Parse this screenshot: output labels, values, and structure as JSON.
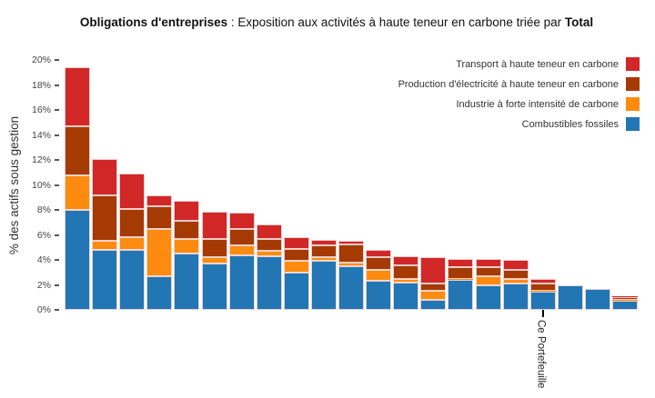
{
  "title": {
    "prefix_bold": "Obligations d'entreprises",
    "middle": " : Exposition aux activités à haute teneur en carbone triée par ",
    "suffix_bold": "Total"
  },
  "chart_data": {
    "type": "bar",
    "stacked": true,
    "title": "Obligations d'entreprises : Exposition aux activités à haute teneur en carbone triée par Total",
    "ylabel": "% des actifs sous gestion",
    "ylim": [
      0,
      20
    ],
    "ytick_step": 2,
    "ytick_labels": [
      "0%",
      "2%",
      "4%",
      "6%",
      "8%",
      "10%",
      "12%",
      "14%",
      "16%",
      "18%",
      "20%"
    ],
    "grid": false,
    "legend_position": "top-right",
    "bar_count": 21,
    "xtick_label": "Ce Portefeuille",
    "xtick_bar_index": 17,
    "series": [
      {
        "name": "Combustibles fossiles",
        "color": "#2276b4",
        "values": [
          8.0,
          4.8,
          4.8,
          2.7,
          4.5,
          3.7,
          4.4,
          4.3,
          3.0,
          3.9,
          3.5,
          2.35,
          2.15,
          0.8,
          2.4,
          2.0,
          2.1,
          1.45,
          2.0,
          1.65,
          0.75
        ]
      },
      {
        "name": "Industrie à forte intensité de carbone",
        "color": "#fd8b0f",
        "values": [
          2.8,
          0.7,
          1.0,
          3.8,
          1.2,
          0.5,
          0.8,
          0.4,
          0.9,
          0.3,
          0.25,
          0.85,
          0.35,
          0.75,
          0.1,
          0.7,
          0.4,
          0.1,
          0,
          0,
          0.05
        ]
      },
      {
        "name": "Production d'électricité à haute teneur en carbone",
        "color": "#a53a03",
        "values": [
          3.9,
          3.7,
          2.3,
          1.8,
          1.4,
          1.45,
          1.3,
          1.0,
          1.0,
          1.0,
          1.5,
          1.0,
          1.1,
          0.55,
          0.9,
          0.72,
          0.7,
          0.55,
          0,
          0,
          0.2
        ]
      },
      {
        "name": "Transport à haute teneur en carbone",
        "color": "#d12727",
        "values": [
          4.7,
          2.9,
          2.8,
          0.9,
          1.65,
          2.2,
          1.3,
          1.15,
          0.9,
          0.4,
          0.25,
          0.6,
          0.7,
          2.1,
          0.65,
          0.63,
          0.8,
          0.4,
          0,
          0,
          0.1
        ]
      }
    ]
  }
}
